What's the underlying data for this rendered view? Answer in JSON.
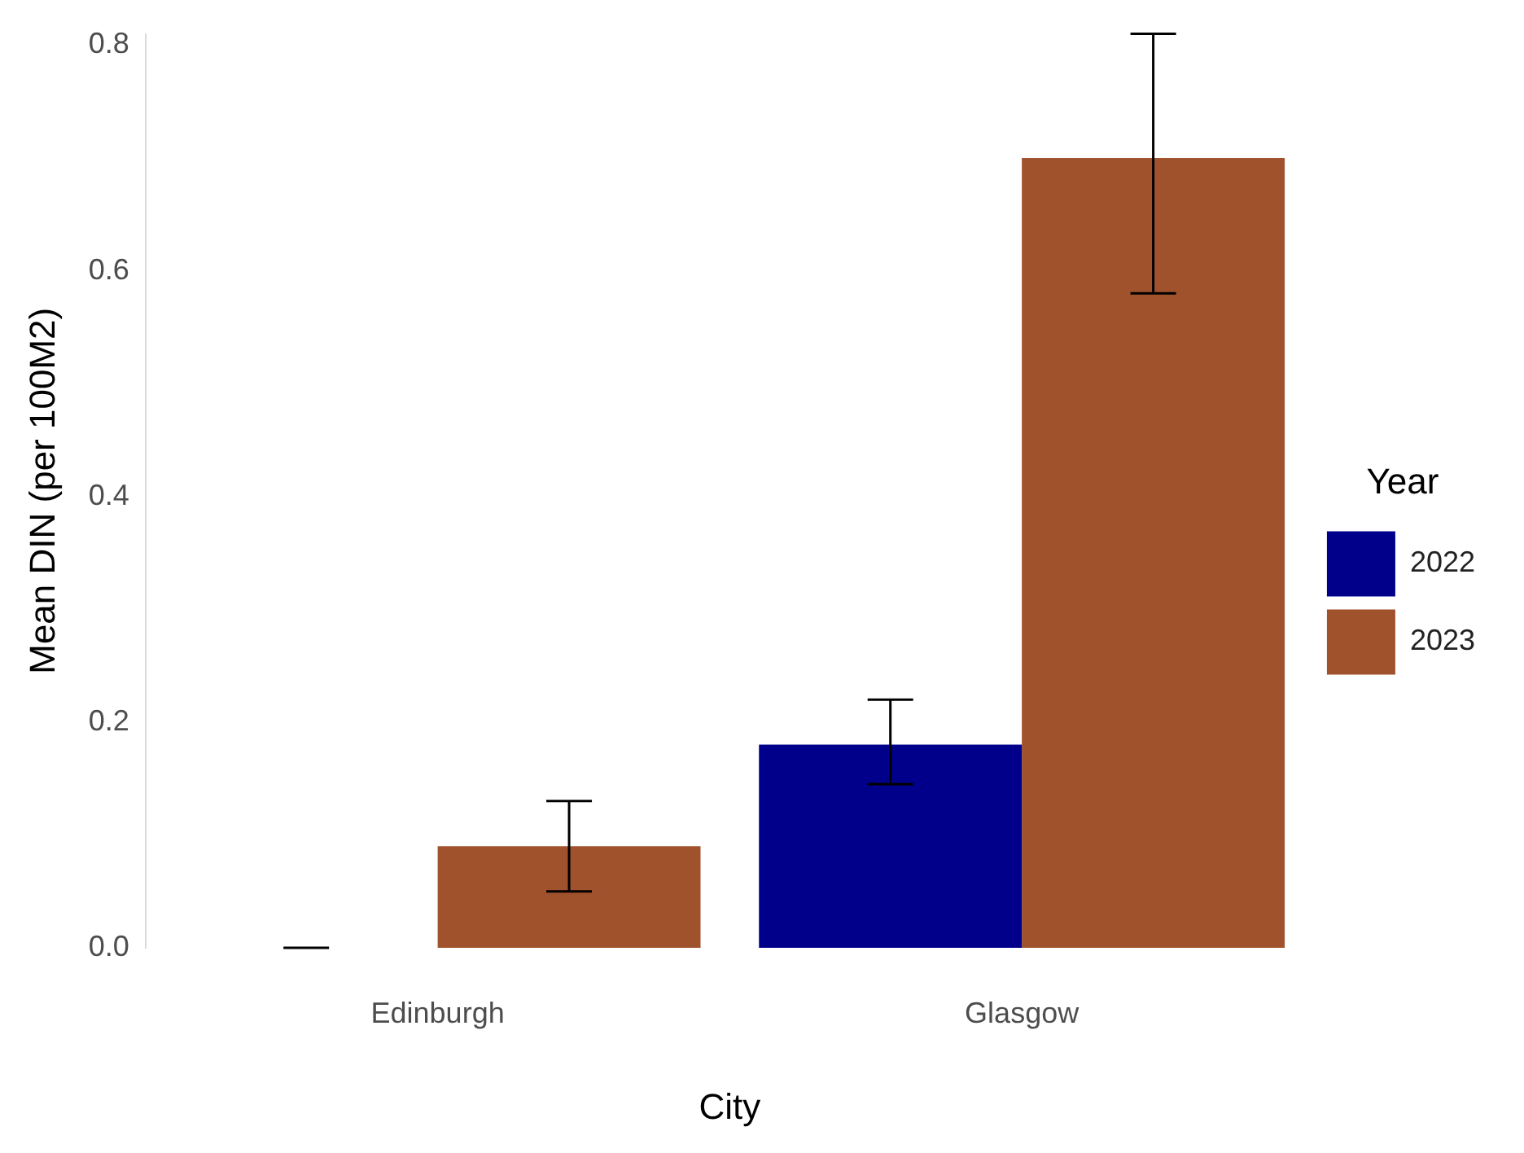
{
  "chart_data": {
    "type": "bar",
    "xlabel": "City",
    "ylabel": "Mean DIN (per 100M2)",
    "legend_title": "Year",
    "categories": [
      "Edinburgh",
      "Glasgow"
    ],
    "series": [
      {
        "name": "2022",
        "color": "#00008b",
        "values": [
          0,
          0.18
        ],
        "errors": [
          0,
          [
            0.145,
            0.22
          ]
        ]
      },
      {
        "name": "2023",
        "color": "#a0522d",
        "values": [
          0.09,
          0.7
        ],
        "errors": [
          [
            0.05,
            0.13
          ],
          [
            0.58,
            0.81
          ]
        ]
      }
    ],
    "ylim": [
      0,
      0.81
    ],
    "yticks": [
      {
        "value": 0,
        "label": "0.0"
      },
      {
        "value": 0.2,
        "label": "0.2"
      },
      {
        "value": 0.4,
        "label": "0.4"
      },
      {
        "value": 0.6,
        "label": "0.6"
      },
      {
        "value": 0.8,
        "label": "0.8"
      }
    ],
    "grid": false,
    "legend": "right"
  }
}
